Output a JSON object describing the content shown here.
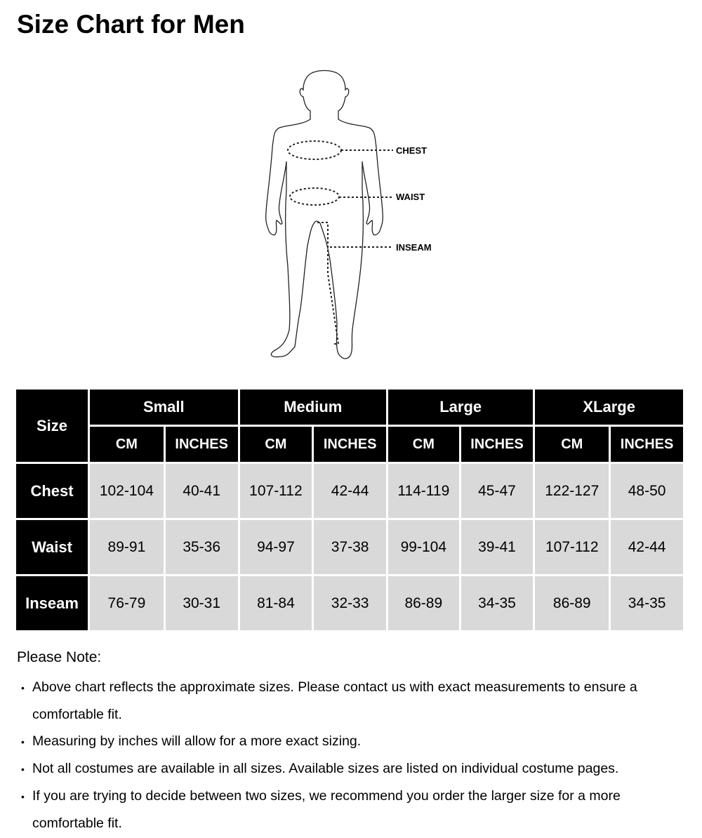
{
  "title": "Size Chart for Men",
  "figure": {
    "labels": {
      "chest": "CHEST",
      "waist": "WAIST",
      "inseam": "INSEAM"
    }
  },
  "table": {
    "corner": "Size",
    "sizes": [
      "Small",
      "Medium",
      "Large",
      "XLarge"
    ],
    "units": [
      "CM",
      "INCHES"
    ],
    "rows": [
      {
        "label": "Chest",
        "values": [
          "102-104",
          "40-41",
          "107-112",
          "42-44",
          "114-119",
          "45-47",
          "122-127",
          "48-50"
        ]
      },
      {
        "label": "Waist",
        "values": [
          "89-91",
          "35-36",
          "94-97",
          "37-38",
          "99-104",
          "39-41",
          "107-112",
          "42-44"
        ]
      },
      {
        "label": "Inseam",
        "values": [
          "76-79",
          "30-31",
          "81-84",
          "32-33",
          "86-89",
          "34-35",
          "86-89",
          "34-35"
        ]
      }
    ],
    "header_bg": "#000000",
    "cell_bg": "#d9d9d9"
  },
  "notes": {
    "heading": "Please Note:",
    "items": [
      "Above chart reflects the approximate sizes. Please contact us with exact measurements to ensure a comfortable fit.",
      "Measuring by inches will allow for a more exact sizing.",
      "Not all costumes are available in all sizes. Available sizes are listed on individual costume pages.",
      "If you are trying to decide between two sizes, we recommend you order the larger size for a more comfortable fit."
    ]
  }
}
